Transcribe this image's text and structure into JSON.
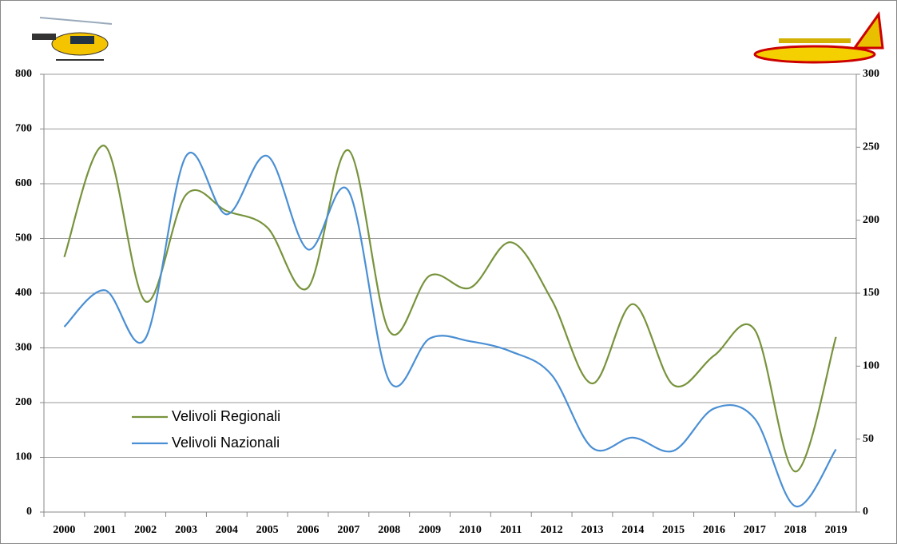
{
  "chart_data": {
    "type": "line",
    "categories": [
      "2000",
      "2001",
      "2002",
      "2003",
      "2004",
      "2005",
      "2006",
      "2007",
      "2008",
      "2009",
      "2010",
      "2011",
      "2012",
      "2013",
      "2014",
      "2015",
      "2016",
      "2017",
      "2018",
      "2019"
    ],
    "series": [
      {
        "name": "Velivoli Regionali",
        "color": "#77933c",
        "axis": "y",
        "values": [
          466,
          669,
          385,
          580,
          550,
          520,
          410,
          661,
          331,
          432,
          410,
          493,
          388,
          235,
          380,
          232,
          286,
          333,
          74,
          320
        ]
      },
      {
        "name": "Velivoli Nazionali",
        "color": "#4a8fd4",
        "axis": "y2",
        "values": [
          127,
          152,
          119,
          244,
          204,
          244,
          180,
          220,
          90,
          119,
          117,
          110,
          94,
          44,
          51,
          42,
          71,
          64,
          4,
          43
        ]
      }
    ],
    "ylim": [
      0,
      800
    ],
    "yticks": [
      0,
      100,
      200,
      300,
      400,
      500,
      600,
      700,
      800
    ],
    "y2lim": [
      0,
      300
    ],
    "y2ticks": [
      0,
      50,
      100,
      150,
      200,
      250,
      300
    ],
    "grid": true
  }
}
